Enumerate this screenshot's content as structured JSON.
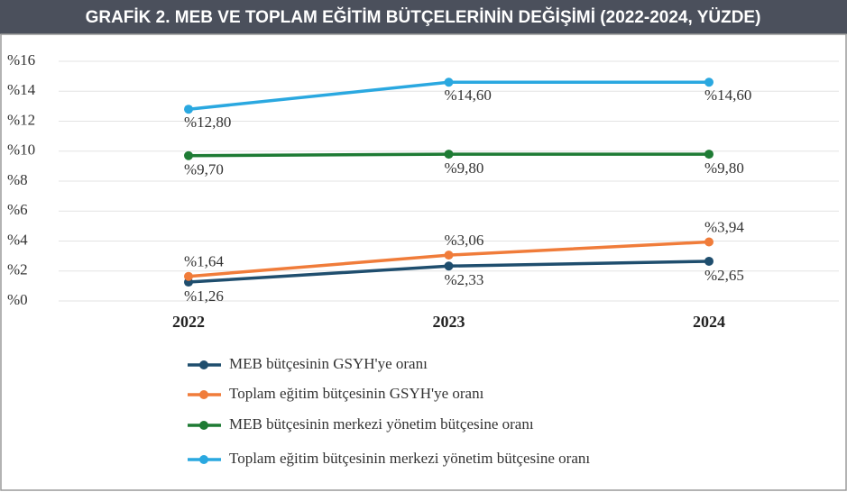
{
  "chart_data": {
    "type": "line",
    "title": "GRAFİK 2. MEB VE TOPLAM EĞİTİM BÜTÇELERİNİN DEĞİŞİMİ (2022-2024, YÜZDE)",
    "categories": [
      "2022",
      "2023",
      "2024"
    ],
    "series": [
      {
        "name": "MEB bütçesinin GSYH'ye oranı",
        "color": "#1f4e6e",
        "values": [
          1.26,
          2.33,
          2.65
        ],
        "value_labels": [
          "%1,26",
          "%2,33",
          "%2,65"
        ]
      },
      {
        "name": "Toplam eğitim bütçesinin GSYH'ye oranı",
        "color": "#f07c3a",
        "values": [
          1.64,
          3.06,
          3.94
        ],
        "value_labels": [
          "%1,64",
          "%3,06",
          "%3,94"
        ]
      },
      {
        "name": "MEB bütçesinin merkezi yönetim bütçesine oranı",
        "color": "#1e7b34",
        "values": [
          9.7,
          9.8,
          9.8
        ],
        "value_labels": [
          "%9,70",
          "%9,80",
          "%9,80"
        ]
      },
      {
        "name": "Toplam eğitim bütçesinin merkezi yönetim bütçesine oranı",
        "color": "#2aa8e0",
        "values": [
          12.8,
          14.6,
          14.6
        ],
        "value_labels": [
          "%12,80",
          "%14,60",
          "%14,60"
        ]
      }
    ],
    "ylim": [
      0,
      16
    ],
    "yticks": [
      {
        "value": 0,
        "label": "%0"
      },
      {
        "value": 2,
        "label": "%2"
      },
      {
        "value": 4,
        "label": "%4"
      },
      {
        "value": 6,
        "label": "%6"
      },
      {
        "value": 8,
        "label": "%8"
      },
      {
        "value": 10,
        "label": "%10"
      },
      {
        "value": 12,
        "label": "%12"
      },
      {
        "value": 14,
        "label": "%14"
      },
      {
        "value": 16,
        "label": "%16"
      }
    ],
    "grid": true,
    "legend": "bottom"
  }
}
